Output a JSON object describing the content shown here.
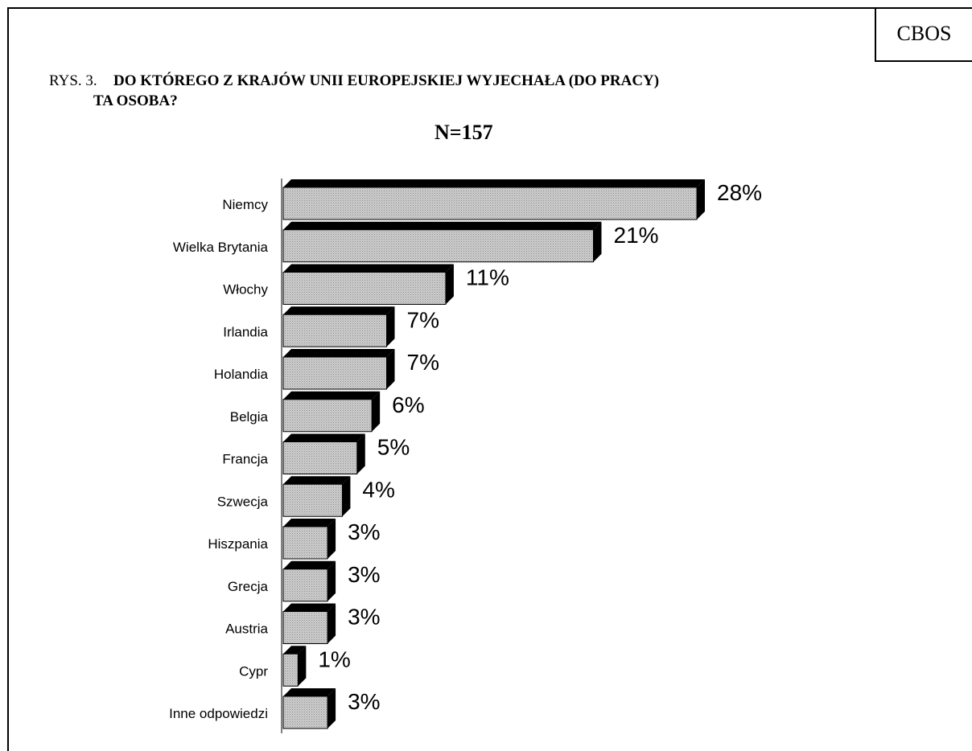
{
  "header": {
    "brand": "CBOS",
    "title_prefix": "RYS. 3.",
    "title_line1": "DO KTÓREGO Z KRAJÓW UNII EUROPEJSKIEJ WYJECHAŁA (DO PRACY)",
    "title_line2": "TA  OSOBA?",
    "sample": "N=157"
  },
  "chart_data": {
    "type": "bar",
    "orientation": "horizontal",
    "title": "DO KTÓREGO Z KRAJÓW UNII EUROPEJSKIEJ WYJECHAŁA (DO PRACY) TA  OSOBA?",
    "subtitle": "N=157",
    "categories": [
      "Niemcy",
      "Wielka Brytania",
      "Włochy",
      "Irlandia",
      "Holandia",
      "Belgia",
      "Francja",
      "Szwecja",
      "Hiszpania",
      "Grecja",
      "Austria",
      "Cypr",
      "Inne odpowiedzi"
    ],
    "values": [
      28,
      21,
      11,
      7,
      7,
      6,
      5,
      4,
      3,
      3,
      3,
      1,
      3
    ],
    "value_labels": [
      "28%",
      "21%",
      "11%",
      "7%",
      "7%",
      "6%",
      "5%",
      "4%",
      "3%",
      "3%",
      "3%",
      "1%",
      "3%"
    ],
    "unit": "%",
    "xlim": [
      0,
      28
    ],
    "grid": false,
    "legend": "none",
    "colors": {
      "bar_fill": "#c8c8c8",
      "bar_shadow": "#000000",
      "axis": "#000000"
    }
  }
}
